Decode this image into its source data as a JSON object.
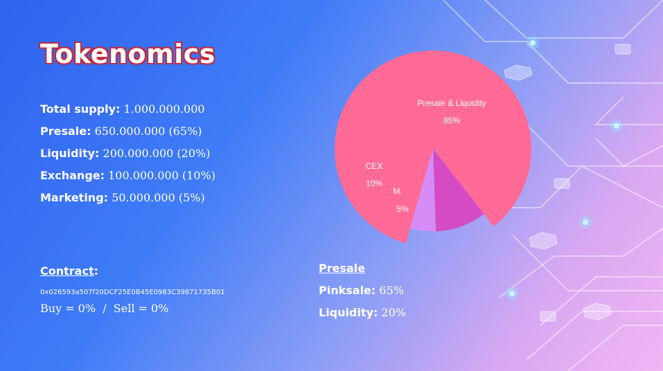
{
  "title": "Tokenomics",
  "stats": [
    {
      "label": "Total supply:",
      "value": "1.000.000.000"
    },
    {
      "label": "Presale:",
      "value": "650.000.000 (65%)"
    },
    {
      "label": "Liquidity:",
      "value": "200.000.000 (20%)"
    },
    {
      "label": "Exchange:",
      "value": "100.000.000 (10%)"
    },
    {
      "label": "Marketing:",
      "value": "50.000.000 (5%)"
    }
  ],
  "contract": {
    "label": "Contract",
    "colon": ":",
    "address": "0x026593a507f20DCF25E0B45E0983C39871735B01",
    "taxes": "Buy = 0%  /  Sell = 0%"
  },
  "presale": {
    "heading": "Presale",
    "rows": [
      {
        "label": "Pinksale:",
        "value": "65%"
      },
      {
        "label": "Liquidity:",
        "value": "20%"
      }
    ]
  },
  "colors": {
    "presale_liquidity": "#ff6a96",
    "cex": "#d54bc4",
    "marketing": "#d68cf6",
    "title_outline": "#c2293a"
  },
  "chart_data": {
    "type": "pie",
    "slices": [
      {
        "label": "Presale & Liquidity",
        "value": 85,
        "value_label": "85%",
        "color": "#ff6a96"
      },
      {
        "label": "CEX",
        "value": 10,
        "value_label": "10%",
        "color": "#d54bc4"
      },
      {
        "label": "M.",
        "value": 5,
        "value_label": "5%",
        "color": "#d68cf6"
      }
    ]
  }
}
